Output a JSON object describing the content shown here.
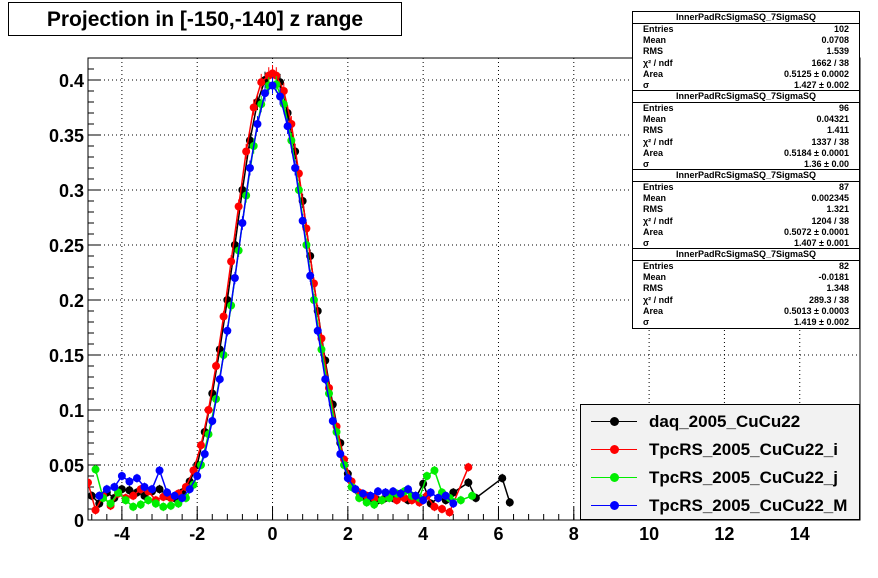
{
  "title": "Projection in [-150,-140] z range",
  "chart_data": {
    "type": "scatter",
    "xlim": [
      -4.9,
      15.6
    ],
    "ylim": [
      0,
      0.42
    ],
    "xticks": [
      -4,
      -2,
      0,
      2,
      4,
      6,
      8,
      10,
      12,
      14
    ],
    "yticks": [
      0,
      0.05,
      0.1,
      0.15,
      0.2,
      0.25,
      0.3,
      0.35,
      0.4
    ],
    "xtick_labels": [
      "-4",
      "-2",
      "0",
      "2",
      "4",
      "6",
      "8",
      "10",
      "12",
      "14"
    ],
    "ytick_labels": [
      "0",
      "0.05",
      "0.1",
      "0.15",
      "0.2",
      "0.25",
      "0.3",
      "0.35",
      "0.4"
    ],
    "grid": true,
    "legend_position": "bottom-right",
    "series": [
      {
        "name": "daq_2005_CuCu22",
        "color": "#000000",
        "x": [
          -4.8,
          -4.6,
          -4.4,
          -4.2,
          -4.0,
          -3.8,
          -3.6,
          -3.4,
          -3.2,
          -3.0,
          -2.8,
          -2.6,
          -2.4,
          -2.2,
          -2.0,
          -1.8,
          -1.6,
          -1.4,
          -1.2,
          -1.0,
          -0.8,
          -0.6,
          -0.4,
          -0.2,
          0.0,
          0.2,
          0.4,
          0.6,
          0.8,
          1.0,
          1.2,
          1.4,
          1.6,
          1.8,
          2.0,
          2.2,
          2.4,
          2.6,
          2.8,
          3.0,
          3.2,
          3.4,
          3.6,
          3.8,
          4.0,
          4.2,
          4.4,
          4.6,
          4.8,
          5.2,
          5.4,
          6.1,
          6.3
        ],
        "y": [
          0.022,
          0.015,
          0.025,
          0.02,
          0.028,
          0.027,
          0.025,
          0.022,
          0.026,
          0.028,
          0.022,
          0.02,
          0.025,
          0.035,
          0.05,
          0.08,
          0.115,
          0.155,
          0.2,
          0.25,
          0.3,
          0.345,
          0.38,
          0.4,
          0.405,
          0.398,
          0.37,
          0.335,
          0.29,
          0.24,
          0.19,
          0.145,
          0.105,
          0.07,
          0.042,
          0.028,
          0.022,
          0.02,
          0.018,
          0.02,
          0.02,
          0.022,
          0.018,
          0.02,
          0.033,
          0.015,
          0.02,
          0.018,
          0.025,
          0.034,
          0.02,
          0.038,
          0.016
        ]
      },
      {
        "name": "TpcRS_2005_CuCu22_i",
        "color": "#ff0000",
        "x": [
          -4.9,
          -4.7,
          -4.5,
          -4.3,
          -4.1,
          -3.9,
          -3.7,
          -3.5,
          -3.3,
          -3.1,
          -2.9,
          -2.7,
          -2.5,
          -2.3,
          -2.1,
          -1.9,
          -1.7,
          -1.5,
          -1.3,
          -1.1,
          -0.9,
          -0.7,
          -0.5,
          -0.3,
          -0.1,
          0.0,
          0.1,
          0.3,
          0.5,
          0.7,
          0.9,
          1.1,
          1.3,
          1.5,
          1.7,
          1.9,
          2.1,
          2.3,
          2.5,
          2.7,
          2.9,
          3.1,
          3.3,
          3.5,
          3.7,
          3.9,
          4.1,
          4.3,
          4.5,
          4.7,
          5.2
        ],
        "y": [
          0.034,
          0.009,
          0.022,
          0.013,
          0.024,
          0.02,
          0.022,
          0.028,
          0.026,
          0.018,
          0.021,
          0.02,
          0.024,
          0.03,
          0.045,
          0.068,
          0.1,
          0.14,
          0.185,
          0.235,
          0.285,
          0.335,
          0.375,
          0.398,
          0.404,
          0.406,
          0.404,
          0.39,
          0.36,
          0.315,
          0.265,
          0.215,
          0.165,
          0.12,
          0.085,
          0.055,
          0.035,
          0.025,
          0.022,
          0.02,
          0.018,
          0.022,
          0.018,
          0.02,
          0.018,
          0.016,
          0.022,
          0.012,
          0.01,
          0.007,
          0.048
        ]
      },
      {
        "name": "TpcRS_2005_CuCu22_j",
        "color": "#00ee00",
        "x": [
          -4.7,
          -4.5,
          -4.3,
          -4.1,
          -3.9,
          -3.7,
          -3.5,
          -3.3,
          -3.1,
          -2.9,
          -2.7,
          -2.5,
          -2.3,
          -2.1,
          -1.9,
          -1.7,
          -1.5,
          -1.3,
          -1.1,
          -0.9,
          -0.7,
          -0.5,
          -0.3,
          -0.1,
          0.1,
          0.3,
          0.5,
          0.7,
          0.9,
          1.1,
          1.3,
          1.5,
          1.7,
          1.9,
          2.1,
          2.3,
          2.5,
          2.7,
          2.9,
          3.1,
          3.3,
          3.5,
          3.7,
          3.9,
          4.1,
          4.3,
          4.5,
          4.7,
          5.0,
          5.3
        ],
        "y": [
          0.046,
          0.02,
          0.015,
          0.025,
          0.018,
          0.012,
          0.014,
          0.018,
          0.015,
          0.012,
          0.013,
          0.015,
          0.02,
          0.032,
          0.05,
          0.078,
          0.11,
          0.15,
          0.195,
          0.245,
          0.295,
          0.34,
          0.378,
          0.395,
          0.396,
          0.378,
          0.345,
          0.3,
          0.25,
          0.2,
          0.155,
          0.115,
          0.08,
          0.05,
          0.03,
          0.02,
          0.016,
          0.014,
          0.018,
          0.02,
          0.024,
          0.026,
          0.022,
          0.02,
          0.04,
          0.045,
          0.025,
          0.02,
          0.018,
          0.022
        ]
      },
      {
        "name": "TpcRS_2005_CuCu22_M",
        "color": "#0000ff",
        "x": [
          -4.6,
          -4.4,
          -4.2,
          -4.0,
          -3.8,
          -3.6,
          -3.4,
          -3.2,
          -3.0,
          -2.8,
          -2.6,
          -2.4,
          -2.2,
          -2.0,
          -1.8,
          -1.6,
          -1.4,
          -1.2,
          -1.0,
          -0.8,
          -0.6,
          -0.4,
          -0.2,
          0.0,
          0.2,
          0.4,
          0.6,
          0.8,
          1.0,
          1.2,
          1.4,
          1.6,
          1.8,
          2.0,
          2.2,
          2.4,
          2.6,
          2.8,
          3.0,
          3.2,
          3.4,
          3.6,
          3.8,
          4.0,
          4.2,
          4.4,
          4.6,
          4.8
        ],
        "y": [
          0.022,
          0.028,
          0.03,
          0.04,
          0.035,
          0.038,
          0.03,
          0.028,
          0.045,
          0.025,
          0.022,
          0.02,
          0.028,
          0.04,
          0.06,
          0.09,
          0.128,
          0.172,
          0.22,
          0.27,
          0.32,
          0.36,
          0.388,
          0.395,
          0.385,
          0.358,
          0.32,
          0.272,
          0.222,
          0.172,
          0.128,
          0.09,
          0.06,
          0.038,
          0.028,
          0.024,
          0.022,
          0.026,
          0.025,
          0.026,
          0.024,
          0.028,
          0.022,
          0.018,
          0.025,
          0.02,
          0.022,
          0.015
        ]
      }
    ]
  },
  "stats_boxes": [
    {
      "title": "InnerPadRcSigmaSQ_7SigmaSQ",
      "rows": [
        {
          "k": "Entries",
          "v": "102"
        },
        {
          "k": "Mean",
          "v": "0.0708"
        },
        {
          "k": "RMS",
          "v": "1.539"
        },
        {
          "k": "χ² / ndf",
          "v": "1662 / 38"
        },
        {
          "k": "Area",
          "v": "0.5125 ± 0.0002"
        },
        {
          "k": "σ",
          "v": "1.427 ± 0.002"
        }
      ]
    },
    {
      "title": "InnerPadRcSigmaSQ_7SigmaSQ",
      "rows": [
        {
          "k": "Entries",
          "v": "96"
        },
        {
          "k": "Mean",
          "v": "0.04321"
        },
        {
          "k": "RMS",
          "v": "1.411"
        },
        {
          "k": "χ² / ndf",
          "v": "1337 / 38"
        },
        {
          "k": "Area",
          "v": "0.5184 ± 0.0001"
        },
        {
          "k": "σ",
          "v": "1.36 ± 0.00"
        }
      ]
    },
    {
      "title": "InnerPadRcSigmaSQ_7SigmaSQ",
      "rows": [
        {
          "k": "Entries",
          "v": "87"
        },
        {
          "k": "Mean",
          "v": "0.002345"
        },
        {
          "k": "RMS",
          "v": "1.321"
        },
        {
          "k": "χ² / ndf",
          "v": "1204 / 38"
        },
        {
          "k": "Area",
          "v": "0.5072 ± 0.0001"
        },
        {
          "k": "σ",
          "v": "1.407 ± 0.001"
        }
      ]
    },
    {
      "title": "InnerPadRcSigmaSQ_7SigmaSQ",
      "rows": [
        {
          "k": "Entries",
          "v": "82"
        },
        {
          "k": "Mean",
          "v": "-0.0181"
        },
        {
          "k": "RMS",
          "v": "1.348"
        },
        {
          "k": "χ² / ndf",
          "v": "289.3 / 38"
        },
        {
          "k": "Area",
          "v": "0.5013 ± 0.0003"
        },
        {
          "k": "σ",
          "v": "1.419 ± 0.002"
        }
      ]
    }
  ]
}
